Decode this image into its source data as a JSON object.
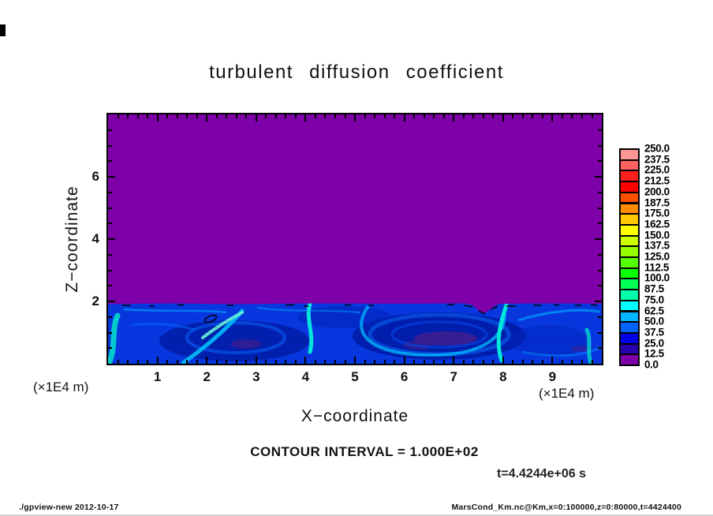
{
  "title": "turbulent diffusion coefficient",
  "axes": {
    "x": {
      "label": "X−coordinate",
      "unit": "(×1E4 m)",
      "tick_labels": [
        "1",
        "2",
        "3",
        "4",
        "5",
        "6",
        "7",
        "8",
        "9"
      ]
    },
    "y": {
      "label": "Z−coordinate",
      "unit": "(×1E4 m)",
      "tick_labels": [
        "2",
        "4",
        "6"
      ]
    }
  },
  "colorbar": {
    "labels": [
      "250.0",
      "237.5",
      "225.0",
      "212.5",
      "200.0",
      "187.5",
      "175.0",
      "162.5",
      "150.0",
      "137.5",
      "125.0",
      "112.5",
      "100.0",
      "87.5",
      "75.0",
      "62.5",
      "50.0",
      "37.5",
      "25.0",
      "12.5",
      "0.0"
    ],
    "colors": [
      "#ff9696",
      "#ff6060",
      "#ff2020",
      "#ff0000",
      "#ff5000",
      "#ff8c00",
      "#ffc800",
      "#ffff00",
      "#ccff00",
      "#96ff00",
      "#55ff00",
      "#0aff00",
      "#00ff55",
      "#00ffaa",
      "#00ffff",
      "#00b4ff",
      "#0064ff",
      "#0000e0",
      "#2800b0",
      "#7d00a8"
    ]
  },
  "annotations": {
    "contour_interval": "CONTOUR INTERVAL = 1.000E+02",
    "time": "t=4.4244e+06 s"
  },
  "footer": {
    "left": "./gpview-new  2012-10-17",
    "right": "MarsCond_Km.nc@Km,x=0:100000,z=0:80000,t=4424400"
  },
  "chart_data": {
    "type": "heatmap",
    "title": "turbulent diffusion coefficient",
    "xlabel": "X-coordinate",
    "ylabel": "Z-coordinate",
    "x_unit": "x1E4 m",
    "y_unit": "x1E4 m",
    "xlim": [
      0,
      10
    ],
    "ylim": [
      0,
      8
    ],
    "x_ticks": [
      1,
      2,
      3,
      4,
      5,
      6,
      7,
      8,
      9
    ],
    "y_ticks": [
      2,
      4,
      6
    ],
    "shade_levels": {
      "min": 0.0,
      "max": 250.0,
      "step": 12.5
    },
    "contour_interval": 100.0,
    "time_seconds": 4424400,
    "palette_order": "purple (0.0) through blue, cyan, green, yellow, orange to pink (250.0)",
    "field_summary": [
      {
        "region": "z from 2 to 8 (x1E4 m), all x",
        "value": 0.0,
        "appearance": "uniform purple"
      },
      {
        "region": "z from 0 to 2 (x1E4 m), all x",
        "value_range": [
          12.5,
          112.5
        ],
        "appearance": "turbulent boundary layer: blue background, cyan plumes near x=0, 4, 6.4, 9.7, dark vortex cores near x=2.5 and 6.7, small purple patches, black 100-contour dashes along z=2 interface and a small closed 100-contour near x=2.1, z=1.5"
      }
    ],
    "legend_position": "right colorbar, 20 discrete boxes, labels 0.0 to 250.0 step 12.5",
    "grid": false
  }
}
